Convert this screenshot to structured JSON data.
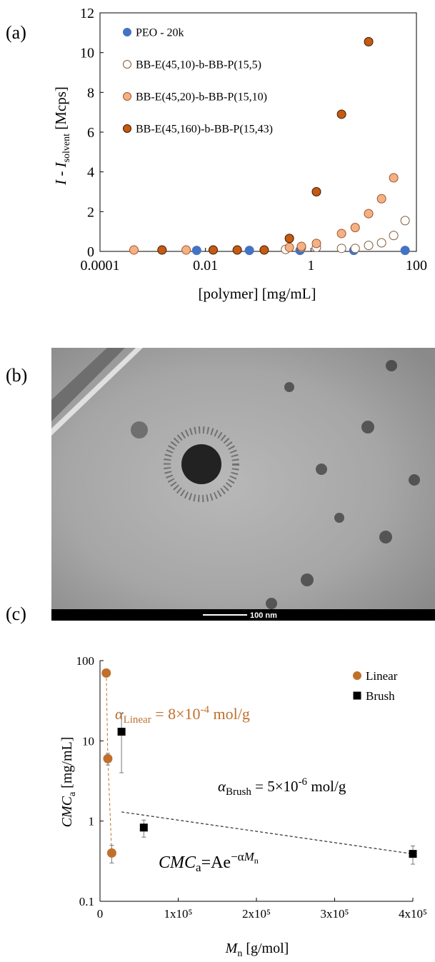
{
  "panel_labels": [
    "(a)",
    "(b)",
    "(c)"
  ],
  "micrograph": {
    "scale_label": "100 nm"
  },
  "chart_data": [
    {
      "type": "scatter",
      "xscale": "log",
      "xlim": [
        0.0001,
        100
      ],
      "xticks": [
        0.0001,
        0.01,
        1,
        100
      ],
      "ylim": [
        0,
        12
      ],
      "yticks": [
        0,
        2,
        4,
        6,
        8,
        10,
        12
      ],
      "legend": "top-left",
      "xlabel": [
        "[polymer] [mg/mL]"
      ],
      "ylabel": [
        "I",
        " - ",
        "I",
        "solvent",
        " [Mcps]"
      ],
      "series": [
        {
          "name": "PEO - 20k",
          "color": "#4472c4",
          "edge": "#4472c4",
          "marker": "circle",
          "x": [
            0.0068,
            0.068,
            0.62,
            6.5,
            61
          ],
          "values": [
            0.05,
            0.05,
            0.05,
            0.05,
            0.05
          ]
        },
        {
          "name": "BB-E(45,10)-b-BB-P(15,5)",
          "color": "#ffffff",
          "edge": "#7f5a3a",
          "marker": "circle",
          "x": [
            0.33,
            0.66,
            1.27,
            3.8,
            6.9,
            12.4,
            21.8,
            37,
            61
          ],
          "values": [
            0.1,
            0.2,
            0.2,
            0.15,
            0.15,
            0.3,
            0.43,
            0.8,
            1.55
          ]
        },
        {
          "name": "BB-E(45,20)-b-BB-P(15,10)",
          "color": "#f4b183",
          "edge": "#a0522d",
          "marker": "circle",
          "x": [
            0.00044,
            0.0043,
            0.39,
            0.66,
            1.27,
            3.8,
            6.9,
            12.4,
            21.8,
            37
          ],
          "values": [
            0.07,
            0.07,
            0.2,
            0.25,
            0.4,
            0.9,
            1.2,
            1.9,
            2.65,
            3.7
          ]
        },
        {
          "name": "BB-E(45,160)-b-BB-P(15,43)",
          "color": "#c55a11",
          "edge": "#3a1a05",
          "marker": "circle",
          "x": [
            0.0015,
            0.014,
            0.04,
            0.13,
            0.39,
            1.27,
            3.8,
            12.4
          ],
          "values": [
            0.07,
            0.07,
            0.07,
            0.07,
            0.65,
            3.0,
            6.9,
            10.55
          ]
        }
      ]
    },
    {
      "type": "scatter",
      "yscale": "log",
      "xlim": [
        0,
        400000
      ],
      "xticks": [
        0,
        {
          "value": 100000,
          "label": "1x10⁵"
        },
        {
          "value": 200000,
          "label": "2x10⁵"
        },
        {
          "value": 300000,
          "label": "3x10⁵"
        },
        {
          "value": 400000,
          "label": "4x10⁵"
        }
      ],
      "ylim": [
        0.1,
        100
      ],
      "yticks": [
        0.1,
        1,
        10,
        100
      ],
      "legend": "top-right",
      "xlabel": [
        "M",
        "n",
        " [g/mol]"
      ],
      "ylabel": [
        "CMC",
        "a",
        " [mg/mL]"
      ],
      "series": [
        {
          "name": "Linear",
          "color": "#c0702a",
          "edge": "#c0702a",
          "marker": "circle",
          "connect": true,
          "x": [
            8000,
            10000,
            15000
          ],
          "values": [
            70,
            6,
            0.4
          ],
          "errors": [
            2,
            1,
            0.1
          ]
        },
        {
          "name": "Brush",
          "color": "#000000",
          "edge": "#000000",
          "marker": "square",
          "x": [
            27500,
            56000,
            400000
          ],
          "values": [
            13,
            0.83,
            0.39
          ],
          "errors": [
            9,
            0.2,
            0.1
          ]
        }
      ],
      "fit_line": {
        "x": [
          27500,
          400000
        ],
        "values": [
          1.3,
          0.39
        ],
        "color": "#000000"
      },
      "annotations": [
        [
          "α",
          "Linear",
          " = 8×10",
          "-4",
          " mol/g"
        ],
        [
          "α",
          "Brush",
          " = 5×10",
          "-6",
          " mol/g"
        ],
        [
          "CMC",
          "a",
          "=Ae",
          "−α",
          "M",
          "n"
        ]
      ]
    }
  ]
}
